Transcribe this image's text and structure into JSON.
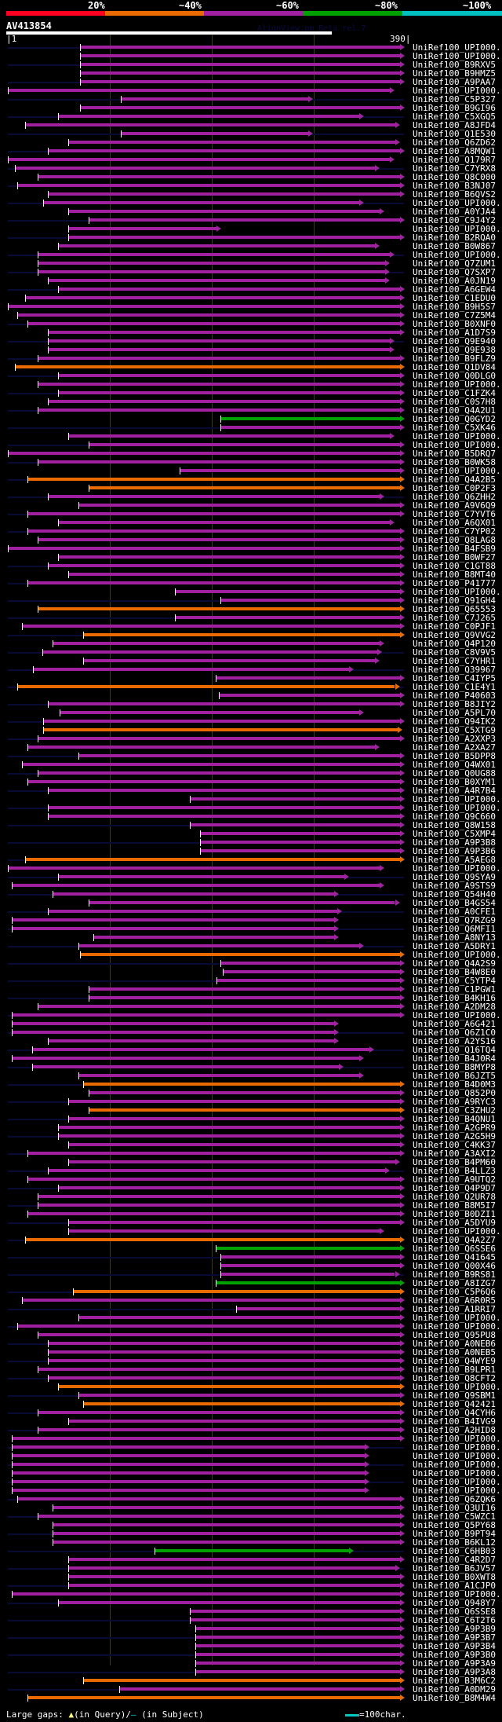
{
  "header": {
    "percent_labels": [
      "20%",
      "~40%",
      "~60%",
      "~80%",
      "~100%"
    ],
    "color_scale": [
      "#ff0022",
      "#e86a00",
      "#a020a0",
      "#00a000",
      "#00c0c0"
    ],
    "query_name": "AV413854",
    "watermark": "AlignView.pm Beta rel.7",
    "ruler_start": "|1",
    "ruler_end": "390|"
  },
  "query_length": 390,
  "colors": {
    "purple": "#a020a0",
    "orange": "#e86a00",
    "green": "#00a000"
  },
  "hits": [
    {
      "label": "UniRef100_UPI000..",
      "c": "purple",
      "s": 72,
      "e": 390
    },
    {
      "label": "UniRef100_UPI000..",
      "c": "purple",
      "s": 72,
      "e": 390
    },
    {
      "label": "UniRef100_B9RXV5",
      "c": "purple",
      "s": 72,
      "e": 390
    },
    {
      "label": "UniRef100_B9HMZ5",
      "c": "purple",
      "s": 72,
      "e": 390
    },
    {
      "label": "UniRef100_A9PAA7",
      "c": "purple",
      "s": 72,
      "e": 390
    },
    {
      "label": "UniRef100_UPI000..",
      "c": "purple",
      "s": 1,
      "e": 380
    },
    {
      "label": "UniRef100_C5P327",
      "c": "purple",
      "s": 112,
      "e": 300
    },
    {
      "label": "UniRef100_B9GI96",
      "c": "purple",
      "s": 72,
      "e": 390
    },
    {
      "label": "UniRef100_C5XGQ5",
      "c": "purple",
      "s": 50,
      "e": 350
    },
    {
      "label": "UniRef100_A8JFD4",
      "c": "purple",
      "s": 18,
      "e": 385
    },
    {
      "label": "UniRef100_Q1E530",
      "c": "purple",
      "s": 112,
      "e": 300
    },
    {
      "label": "UniRef100_Q6ZD62",
      "c": "purple",
      "s": 60,
      "e": 385
    },
    {
      "label": "UniRef100_A8MQW1",
      "c": "purple",
      "s": 40,
      "e": 390
    },
    {
      "label": "UniRef100_Q179R7",
      "c": "purple",
      "s": 1,
      "e": 380
    },
    {
      "label": "UniRef100_C7YRX8",
      "c": "purple",
      "s": 8,
      "e": 365
    },
    {
      "label": "UniRef100_Q8C000",
      "c": "purple",
      "s": 30,
      "e": 390
    },
    {
      "label": "UniRef100_B3NJ07",
      "c": "purple",
      "s": 10,
      "e": 390
    },
    {
      "label": "UniRef100_B6QVS2",
      "c": "purple",
      "s": 40,
      "e": 390
    },
    {
      "label": "UniRef100_UPI000..",
      "c": "purple",
      "s": 36,
      "e": 350
    },
    {
      "label": "UniRef100_A0YJA4",
      "c": "purple",
      "s": 60,
      "e": 370
    },
    {
      "label": "UniRef100_C9J4Y2",
      "c": "purple",
      "s": 80,
      "e": 390
    },
    {
      "label": "UniRef100_UPI000..",
      "c": "purple",
      "s": 60,
      "e": 210
    },
    {
      "label": "UniRef100_B2RQA0",
      "c": "purple",
      "s": 60,
      "e": 390
    },
    {
      "label": "UniRef100_B0W867",
      "c": "purple",
      "s": 50,
      "e": 365
    },
    {
      "label": "UniRef100_UPI000..",
      "c": "purple",
      "s": 30,
      "e": 380
    },
    {
      "label": "UniRef100_Q7ZUM1",
      "c": "purple",
      "s": 30,
      "e": 375
    },
    {
      "label": "UniRef100_Q7SXP7",
      "c": "purple",
      "s": 30,
      "e": 375
    },
    {
      "label": "UniRef100_A0JN19",
      "c": "purple",
      "s": 40,
      "e": 375
    },
    {
      "label": "UniRef100_A6GEW4",
      "c": "purple",
      "s": 50,
      "e": 390
    },
    {
      "label": "UniRef100_C1EDU0",
      "c": "purple",
      "s": 18,
      "e": 390
    },
    {
      "label": "UniRef100_B9H5S7",
      "c": "purple",
      "s": 1,
      "e": 390
    },
    {
      "label": "UniRef100_C7Z5M4",
      "c": "purple",
      "s": 10,
      "e": 390
    },
    {
      "label": "UniRef100_B0XNF0",
      "c": "purple",
      "s": 20,
      "e": 390
    },
    {
      "label": "UniRef100_A1D7S9",
      "c": "purple",
      "s": 40,
      "e": 390
    },
    {
      "label": "UniRef100_Q9E940",
      "c": "purple",
      "s": 40,
      "e": 380
    },
    {
      "label": "UniRef100_Q9E938",
      "c": "purple",
      "s": 40,
      "e": 380
    },
    {
      "label": "UniRef100_B9FLZ9",
      "c": "purple",
      "s": 30,
      "e": 390
    },
    {
      "label": "UniRef100_Q1DV84",
      "c": "orange",
      "s": 8,
      "e": 390
    },
    {
      "label": "UniRef100_Q0DLG0",
      "c": "purple",
      "s": 50,
      "e": 390
    },
    {
      "label": "UniRef100_UPI000..",
      "c": "purple",
      "s": 30,
      "e": 390
    },
    {
      "label": "UniRef100_C1FZK4",
      "c": "purple",
      "s": 50,
      "e": 390
    },
    {
      "label": "UniRef100_C0S7H8",
      "c": "purple",
      "s": 40,
      "e": 390
    },
    {
      "label": "UniRef100_Q4A2U1",
      "c": "purple",
      "s": 30,
      "e": 390
    },
    {
      "label": "UniRef100_Q0GYD2",
      "c": "green",
      "s": 210,
      "e": 390
    },
    {
      "label": "UniRef100_C5XK46",
      "c": "purple",
      "s": 210,
      "e": 390
    },
    {
      "label": "UniRef100_UPI000..",
      "c": "purple",
      "s": 60,
      "e": 380
    },
    {
      "label": "UniRef100_UPI000..",
      "c": "purple",
      "s": 80,
      "e": 390
    },
    {
      "label": "UniRef100_B5DRQ7",
      "c": "purple",
      "s": 1,
      "e": 390
    },
    {
      "label": "UniRef100_B0WK58",
      "c": "purple",
      "s": 30,
      "e": 390
    },
    {
      "label": "UniRef100_UPI000..",
      "c": "purple",
      "s": 170,
      "e": 390
    },
    {
      "label": "UniRef100_Q4A2B5",
      "c": "orange",
      "s": 20,
      "e": 390
    },
    {
      "label": "UniRef100_C0P2F3",
      "c": "orange",
      "s": 80,
      "e": 390
    },
    {
      "label": "UniRef100_Q6ZHH2",
      "c": "purple",
      "s": 40,
      "e": 370
    },
    {
      "label": "UniRef100_A9V6Q9",
      "c": "purple",
      "s": 70,
      "e": 390
    },
    {
      "label": "UniRef100_C7YVT6",
      "c": "purple",
      "s": 20,
      "e": 390
    },
    {
      "label": "UniRef100_A6QX01",
      "c": "purple",
      "s": 50,
      "e": 380
    },
    {
      "label": "UniRef100_C7YP02",
      "c": "purple",
      "s": 20,
      "e": 390
    },
    {
      "label": "UniRef100_Q8LAG8",
      "c": "purple",
      "s": 30,
      "e": 390
    },
    {
      "label": "UniRef100_B4FSB9",
      "c": "purple",
      "s": 1,
      "e": 390
    },
    {
      "label": "UniRef100_B0WF27",
      "c": "purple",
      "s": 50,
      "e": 390
    },
    {
      "label": "UniRef100_C1GT88",
      "c": "purple",
      "s": 40,
      "e": 390
    },
    {
      "label": "UniRef100_B8MT40",
      "c": "purple",
      "s": 60,
      "e": 390
    },
    {
      "label": "UniRef100_P41777",
      "c": "purple",
      "s": 20,
      "e": 390
    },
    {
      "label": "UniRef100_UPI000..",
      "c": "purple",
      "s": 165,
      "e": 390
    },
    {
      "label": "UniRef100_Q91GH4",
      "c": "purple",
      "s": 210,
      "e": 390
    },
    {
      "label": "UniRef100_Q65553",
      "c": "orange",
      "s": 30,
      "e": 390
    },
    {
      "label": "UniRef100_C7J265",
      "c": "purple",
      "s": 165,
      "e": 390
    },
    {
      "label": "UniRef100_C0PJF1",
      "c": "purple",
      "s": 15,
      "e": 390
    },
    {
      "label": "UniRef100_Q9VVG2",
      "c": "orange",
      "s": 75,
      "e": 390
    },
    {
      "label": "UniRef100_Q4P120",
      "c": "purple",
      "s": 45,
      "e": 370
    },
    {
      "label": "UniRef100_C8V9V5",
      "c": "purple",
      "s": 35,
      "e": 368
    },
    {
      "label": "UniRef100_C7YHR1",
      "c": "purple",
      "s": 75,
      "e": 365
    },
    {
      "label": "UniRef100_Q39967",
      "c": "purple",
      "s": 26,
      "e": 340
    },
    {
      "label": "UniRef100_C4IYP5",
      "c": "purple",
      "s": 205,
      "e": 390
    },
    {
      "label": "UniRef100_C1E4Y1",
      "c": "orange",
      "s": 10,
      "e": 385
    },
    {
      "label": "UniRef100_P40603",
      "c": "purple",
      "s": 208,
      "e": 390
    },
    {
      "label": "UniRef100_B8JIY2",
      "c": "purple",
      "s": 40,
      "e": 390
    },
    {
      "label": "UniRef100_A5PL70",
      "c": "purple",
      "s": 52,
      "e": 350
    },
    {
      "label": "UniRef100_Q94IK2",
      "c": "purple",
      "s": 36,
      "e": 390
    },
    {
      "label": "UniRef100_C5XTG9",
      "c": "orange",
      "s": 36,
      "e": 388
    },
    {
      "label": "UniRef100_A2XXP3",
      "c": "purple",
      "s": 30,
      "e": 390
    },
    {
      "label": "UniRef100_A2XA27",
      "c": "purple",
      "s": 20,
      "e": 365
    },
    {
      "label": "UniRef100_B5DPP8",
      "c": "purple",
      "s": 70,
      "e": 390
    },
    {
      "label": "UniRef100_Q4WX01",
      "c": "purple",
      "s": 15,
      "e": 390
    },
    {
      "label": "UniRef100_Q0UG88",
      "c": "purple",
      "s": 30,
      "e": 390
    },
    {
      "label": "UniRef100_B0XYM1",
      "c": "purple",
      "s": 20,
      "e": 390
    },
    {
      "label": "UniRef100_A4R7B4",
      "c": "purple",
      "s": 40,
      "e": 390
    },
    {
      "label": "UniRef100_UPI000..",
      "c": "purple",
      "s": 180,
      "e": 390
    },
    {
      "label": "UniRef100_UPI000..",
      "c": "purple",
      "s": 40,
      "e": 390
    },
    {
      "label": "UniRef100_Q9C660",
      "c": "purple",
      "s": 40,
      "e": 390
    },
    {
      "label": "UniRef100_Q8W158",
      "c": "purple",
      "s": 180,
      "e": 390
    },
    {
      "label": "UniRef100_C5XMP4",
      "c": "purple",
      "s": 190,
      "e": 390
    },
    {
      "label": "UniRef100_A9P3B8",
      "c": "purple",
      "s": 190,
      "e": 390
    },
    {
      "label": "UniRef100_A9P3B6",
      "c": "purple",
      "s": 190,
      "e": 390
    },
    {
      "label": "UniRef100_A5AEG8",
      "c": "orange",
      "s": 18,
      "e": 390
    },
    {
      "label": "UniRef100_UPI000..",
      "c": "purple",
      "s": 1,
      "e": 370
    },
    {
      "label": "UniRef100_Q9SYA9",
      "c": "purple",
      "s": 50,
      "e": 335
    },
    {
      "label": "UniRef100_A9STS9",
      "c": "purple",
      "s": 5,
      "e": 370
    },
    {
      "label": "UniRef100_Q54H40",
      "c": "purple",
      "s": 45,
      "e": 325
    },
    {
      "label": "UniRef100_B4GS54",
      "c": "purple",
      "s": 80,
      "e": 385
    },
    {
      "label": "UniRef100_A0CFE1",
      "c": "purple",
      "s": 40,
      "e": 328
    },
    {
      "label": "UniRef100_Q7RZG9",
      "c": "purple",
      "s": 5,
      "e": 325
    },
    {
      "label": "UniRef100_Q6MFI1",
      "c": "purple",
      "s": 5,
      "e": 325
    },
    {
      "label": "UniRef100_A8NY13",
      "c": "purple",
      "s": 85,
      "e": 325
    },
    {
      "label": "UniRef100_A5DRY1",
      "c": "purple",
      "s": 70,
      "e": 350
    },
    {
      "label": "UniRef100_UPI000..",
      "c": "orange",
      "s": 72,
      "e": 390
    },
    {
      "label": "UniRef100_Q4A2S9",
      "c": "purple",
      "s": 210,
      "e": 390
    },
    {
      "label": "UniRef100_B4W8E0",
      "c": "purple",
      "s": 212,
      "e": 390
    },
    {
      "label": "UniRef100_C5YTP4",
      "c": "purple",
      "s": 206,
      "e": 390
    },
    {
      "label": "UniRef100_C1PGW1",
      "c": "purple",
      "s": 80,
      "e": 390
    },
    {
      "label": "UniRef100_B4KH16",
      "c": "purple",
      "s": 80,
      "e": 390
    },
    {
      "label": "UniRef100_A2DM28",
      "c": "purple",
      "s": 30,
      "e": 390
    },
    {
      "label": "UniRef100_UPI000..",
      "c": "purple",
      "s": 5,
      "e": 390
    },
    {
      "label": "UniRef100_A6G421",
      "c": "purple",
      "s": 5,
      "e": 325
    },
    {
      "label": "UniRef100_Q6Z1C0",
      "c": "purple",
      "s": 5,
      "e": 325
    },
    {
      "label": "UniRef100_A2YS16",
      "c": "purple",
      "s": 40,
      "e": 325
    },
    {
      "label": "UniRef100_Q16TQ4",
      "c": "purple",
      "s": 25,
      "e": 360
    },
    {
      "label": "UniRef100_B4J0R4",
      "c": "purple",
      "s": 5,
      "e": 350
    },
    {
      "label": "UniRef100_B8MYP8",
      "c": "purple",
      "s": 25,
      "e": 330
    },
    {
      "label": "UniRef100_B6JZT5",
      "c": "purple",
      "s": 70,
      "e": 350
    },
    {
      "label": "UniRef100_B4D0M3",
      "c": "orange",
      "s": 75,
      "e": 390
    },
    {
      "label": "UniRef100_Q852P0",
      "c": "purple",
      "s": 80,
      "e": 390
    },
    {
      "label": "UniRef100_A9RYC3",
      "c": "purple",
      "s": 60,
      "e": 390
    },
    {
      "label": "UniRef100_C3ZHU2",
      "c": "orange",
      "s": 80,
      "e": 390
    },
    {
      "label": "UniRef100_B4QNU1",
      "c": "purple",
      "s": 60,
      "e": 390
    },
    {
      "label": "UniRef100_A2GPR9",
      "c": "purple",
      "s": 50,
      "e": 390
    },
    {
      "label": "UniRef100_A2G5H9",
      "c": "purple",
      "s": 50,
      "e": 390
    },
    {
      "label": "UniRef100_C4KK37",
      "c": "purple",
      "s": 60,
      "e": 390
    },
    {
      "label": "UniRef100_A3AXI2",
      "c": "purple",
      "s": 20,
      "e": 390
    },
    {
      "label": "UniRef100_B4PM60",
      "c": "purple",
      "s": 60,
      "e": 385
    },
    {
      "label": "UniRef100_B4LLZ3",
      "c": "purple",
      "s": 40,
      "e": 375
    },
    {
      "label": "UniRef100_A9UTQ2",
      "c": "purple",
      "s": 20,
      "e": 390
    },
    {
      "label": "UniRef100_Q4P9D7",
      "c": "purple",
      "s": 50,
      "e": 390
    },
    {
      "label": "UniRef100_Q2UR78",
      "c": "purple",
      "s": 30,
      "e": 390
    },
    {
      "label": "UniRef100_B8M5I7",
      "c": "purple",
      "s": 30,
      "e": 390
    },
    {
      "label": "UniRef100_B0DZI1",
      "c": "purple",
      "s": 20,
      "e": 390
    },
    {
      "label": "UniRef100_A5DYU9",
      "c": "purple",
      "s": 60,
      "e": 390
    },
    {
      "label": "UniRef100_UPI000..",
      "c": "purple",
      "s": 60,
      "e": 370
    },
    {
      "label": "UniRef100_Q4A2Z7",
      "c": "orange",
      "s": 18,
      "e": 390
    },
    {
      "label": "UniRef100_Q6SSE6",
      "c": "green",
      "s": 205,
      "e": 390
    },
    {
      "label": "UniRef100_Q41645",
      "c": "purple",
      "s": 210,
      "e": 390
    },
    {
      "label": "UniRef100_Q00X46",
      "c": "purple",
      "s": 210,
      "e": 390
    },
    {
      "label": "UniRef100_B9RS81",
      "c": "purple",
      "s": 210,
      "e": 385
    },
    {
      "label": "UniRef100_A8IZG7",
      "c": "green",
      "s": 205,
      "e": 390
    },
    {
      "label": "UniRef100_C5P6Q6",
      "c": "orange",
      "s": 65,
      "e": 390
    },
    {
      "label": "UniRef100_A6R0R5",
      "c": "purple",
      "s": 15,
      "e": 390
    },
    {
      "label": "UniRef100_A1RRI7",
      "c": "purple",
      "s": 225,
      "e": 390
    },
    {
      "label": "UniRef100_UPI000..",
      "c": "purple",
      "s": 70,
      "e": 390
    },
    {
      "label": "UniRef100_UPI000..",
      "c": "purple",
      "s": 10,
      "e": 390
    },
    {
      "label": "UniRef100_Q95PU8",
      "c": "purple",
      "s": 30,
      "e": 390
    },
    {
      "label": "UniRef100_A0NEB6",
      "c": "purple",
      "s": 40,
      "e": 390
    },
    {
      "label": "UniRef100_A0NEB5",
      "c": "purple",
      "s": 40,
      "e": 390
    },
    {
      "label": "UniRef100_Q4WYE9",
      "c": "purple",
      "s": 40,
      "e": 390
    },
    {
      "label": "UniRef100_B9LPR1",
      "c": "purple",
      "s": 30,
      "e": 390
    },
    {
      "label": "UniRef100_Q8CFT2",
      "c": "purple",
      "s": 40,
      "e": 390
    },
    {
      "label": "UniRef100_UPI000..",
      "c": "orange",
      "s": 50,
      "e": 390
    },
    {
      "label": "UniRef100_Q9SBM1",
      "c": "purple",
      "s": 70,
      "e": 390
    },
    {
      "label": "UniRef100_Q42421",
      "c": "orange",
      "s": 75,
      "e": 390
    },
    {
      "label": "UniRef100_Q4CYH6",
      "c": "purple",
      "s": 30,
      "e": 390
    },
    {
      "label": "UniRef100_B4IVG9",
      "c": "purple",
      "s": 60,
      "e": 390
    },
    {
      "label": "UniRef100_A2HID8",
      "c": "purple",
      "s": 30,
      "e": 390
    },
    {
      "label": "UniRef100_UPI000..",
      "c": "purple",
      "s": 5,
      "e": 390
    },
    {
      "label": "UniRef100_UPI000..",
      "c": "purple",
      "s": 5,
      "e": 355
    },
    {
      "label": "UniRef100_UPI000..",
      "c": "purple",
      "s": 5,
      "e": 355
    },
    {
      "label": "UniRef100_UPI000..",
      "c": "purple",
      "s": 5,
      "e": 355
    },
    {
      "label": "UniRef100_UPI000..",
      "c": "purple",
      "s": 5,
      "e": 355
    },
    {
      "label": "UniRef100_UPI000..",
      "c": "purple",
      "s": 5,
      "e": 355
    },
    {
      "label": "UniRef100_UPI000..",
      "c": "purple",
      "s": 5,
      "e": 355
    },
    {
      "label": "UniRef100_Q6ZQK6",
      "c": "purple",
      "s": 10,
      "e": 390
    },
    {
      "label": "UniRef100_Q3UI16",
      "c": "purple",
      "s": 45,
      "e": 390
    },
    {
      "label": "UniRef100_C5WZC1",
      "c": "purple",
      "s": 30,
      "e": 390
    },
    {
      "label": "UniRef100_Q5PY68",
      "c": "purple",
      "s": 45,
      "e": 390
    },
    {
      "label": "UniRef100_B9PT94",
      "c": "purple",
      "s": 45,
      "e": 390
    },
    {
      "label": "UniRef100_B6KL12",
      "c": "purple",
      "s": 45,
      "e": 390
    },
    {
      "label": "UniRef100_C6HB03",
      "c": "green",
      "s": 145,
      "e": 340
    },
    {
      "label": "UniRef100_C4R2D7",
      "c": "purple",
      "s": 60,
      "e": 390
    },
    {
      "label": "UniRef100_B6JV57",
      "c": "purple",
      "s": 60,
      "e": 385
    },
    {
      "label": "UniRef100_B0XWT8",
      "c": "purple",
      "s": 60,
      "e": 390
    },
    {
      "label": "UniRef100_A1CJP0",
      "c": "purple",
      "s": 60,
      "e": 390
    },
    {
      "label": "UniRef100_UPI000..",
      "c": "purple",
      "s": 5,
      "e": 390
    },
    {
      "label": "UniRef100_Q948Y7",
      "c": "purple",
      "s": 50,
      "e": 390
    },
    {
      "label": "UniRef100_Q6SSE8",
      "c": "purple",
      "s": 180,
      "e": 390
    },
    {
      "label": "UniRef100_C6T2T6",
      "c": "purple",
      "s": 180,
      "e": 390
    },
    {
      "label": "UniRef100_A9P3B9",
      "c": "purple",
      "s": 185,
      "e": 390
    },
    {
      "label": "UniRef100_A9P3B7",
      "c": "purple",
      "s": 185,
      "e": 390
    },
    {
      "label": "UniRef100_A9P3B4",
      "c": "purple",
      "s": 185,
      "e": 390
    },
    {
      "label": "UniRef100_A9P3B0",
      "c": "purple",
      "s": 185,
      "e": 390
    },
    {
      "label": "UniRef100_A9P3A9",
      "c": "purple",
      "s": 185,
      "e": 390
    },
    {
      "label": "UniRef100_A9P3A8",
      "c": "purple",
      "s": 185,
      "e": 390
    },
    {
      "label": "UniRef100_B3M6C2",
      "c": "orange",
      "s": 75,
      "e": 390
    },
    {
      "label": "UniRef100_A0DM29",
      "c": "purple",
      "s": 110,
      "e": 390
    },
    {
      "label": "UniRef100_B8M4W4",
      "c": "orange",
      "s": 20,
      "e": 390
    }
  ],
  "legend": {
    "large_gaps_label": "Large gaps:",
    "query_marker": "▲",
    "in_query": "(in Query)/",
    "subject_marker": "–",
    "in_subject": " (in Subject)",
    "scale_text": "=100char."
  }
}
